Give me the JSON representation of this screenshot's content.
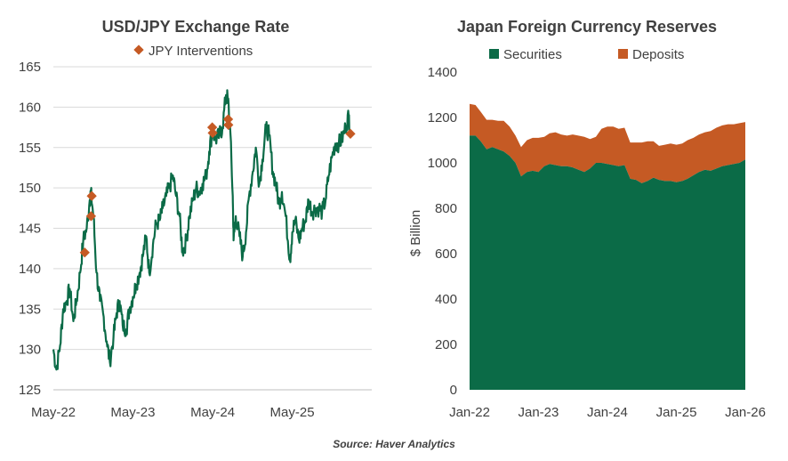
{
  "colors": {
    "fx_line": "#0b6b47",
    "intervention": "#c55a24",
    "securities": "#0b6b47",
    "deposits": "#c55a24"
  },
  "source": "Source: Haver Analytics",
  "chart_data": [
    {
      "type": "line",
      "title": "USD/JPY Exchange Rate",
      "legend": "JPY Interventions",
      "legend_position": "top",
      "ylim": [
        125,
        165
      ],
      "yticks": [
        125,
        130,
        135,
        140,
        145,
        150,
        155,
        160,
        165
      ],
      "xlim": [
        "2022-05-01",
        "2026-05-01"
      ],
      "xticks": [
        {
          "date": "2022-05-01",
          "label": "May-22"
        },
        {
          "date": "2023-05-01",
          "label": "May-23"
        },
        {
          "date": "2024-05-01",
          "label": "May-24"
        },
        {
          "date": "2025-05-01",
          "label": "May-25"
        }
      ],
      "grid": true,
      "series": [
        {
          "x": [
            "2022-05-01",
            "2022-05-15",
            "2022-06-01",
            "2022-06-15",
            "2022-07-01",
            "2022-07-15",
            "2022-08-01",
            "2022-08-15",
            "2022-09-01",
            "2022-09-15",
            "2022-10-01",
            "2022-10-15",
            "2022-10-20",
            "2022-11-01",
            "2022-11-15",
            "2022-12-01",
            "2022-12-15",
            "2023-01-01",
            "2023-01-15",
            "2023-02-01",
            "2023-02-15",
            "2023-03-01",
            "2023-03-15",
            "2023-04-01",
            "2023-04-15",
            "2023-05-01",
            "2023-05-15",
            "2023-06-01",
            "2023-06-15",
            "2023-07-01",
            "2023-07-15",
            "2023-08-01",
            "2023-08-15",
            "2023-09-01",
            "2023-09-15",
            "2023-10-01",
            "2023-10-15",
            "2023-11-01",
            "2023-11-15",
            "2023-12-01",
            "2023-12-15",
            "2024-01-01",
            "2024-01-15",
            "2024-02-01",
            "2024-02-15",
            "2024-03-01",
            "2024-03-15",
            "2024-04-01",
            "2024-04-15",
            "2024-04-29",
            "2024-05-15",
            "2024-06-01",
            "2024-06-15",
            "2024-07-01",
            "2024-07-10",
            "2024-07-20",
            "2024-08-01",
            "2024-08-05",
            "2024-08-15",
            "2024-09-01",
            "2024-09-16",
            "2024-10-01",
            "2024-10-15",
            "2024-11-01",
            "2024-11-15",
            "2024-12-01",
            "2024-12-15",
            "2025-01-01",
            "2025-01-15",
            "2025-02-01",
            "2025-02-15",
            "2025-03-01",
            "2025-03-15",
            "2025-04-01",
            "2025-04-21",
            "2025-05-01",
            "2025-05-15",
            "2025-06-01",
            "2025-06-15",
            "2025-07-01",
            "2025-07-15",
            "2025-08-01",
            "2025-08-15",
            "2025-09-01",
            "2025-09-15",
            "2025-10-01",
            "2025-10-15",
            "2025-11-01",
            "2025-11-15",
            "2025-12-01",
            "2025-12-15",
            "2026-01-01",
            "2026-01-15",
            "2026-01-23"
          ],
          "y": [
            130.0,
            127.5,
            130.5,
            135.0,
            136.0,
            137.5,
            133.5,
            136.0,
            139.5,
            143.5,
            145.0,
            148.5,
            149.5,
            146.5,
            139.5,
            136.0,
            134.5,
            131.0,
            128.5,
            131.5,
            134.5,
            136.0,
            133.0,
            132.5,
            135.0,
            136.5,
            138.0,
            139.5,
            141.5,
            144.0,
            139.5,
            143.0,
            145.5,
            146.0,
            147.5,
            149.0,
            150.0,
            151.5,
            149.0,
            146.5,
            142.0,
            143.5,
            146.5,
            148.5,
            150.0,
            149.5,
            150.5,
            151.5,
            154.5,
            157.0,
            156.0,
            156.5,
            157.5,
            161.5,
            161.0,
            157.5,
            149.0,
            143.5,
            146.5,
            144.0,
            141.5,
            144.5,
            149.0,
            152.0,
            155.0,
            150.5,
            153.5,
            157.5,
            156.5,
            152.0,
            150.5,
            148.0,
            149.5,
            146.5,
            141.0,
            144.5,
            146.0,
            143.5,
            145.0,
            146.0,
            148.5,
            147.0,
            147.5,
            147.5,
            147.0,
            148.5,
            151.5,
            154.0,
            155.5,
            155.5,
            156.0,
            157.5,
            159.0,
            157.0
          ]
        }
      ],
      "interventions": [
        {
          "x": "2022-09-22",
          "y": 142.0
        },
        {
          "x": "2022-10-21",
          "y": 146.5
        },
        {
          "x": "2022-10-24",
          "y": 149.0
        },
        {
          "x": "2024-04-29",
          "y": 157.5
        },
        {
          "x": "2024-05-01",
          "y": 156.8
        },
        {
          "x": "2024-07-11",
          "y": 158.5
        },
        {
          "x": "2024-07-12",
          "y": 157.8
        },
        {
          "x": "2026-01-23",
          "y": 156.7
        }
      ]
    },
    {
      "type": "area",
      "title": "Japan Foreign Currency Reserves",
      "ylabel": "$ Billion",
      "ylim": [
        0,
        1400
      ],
      "yticks": [
        0,
        200,
        400,
        600,
        800,
        1000,
        1200,
        1400
      ],
      "xlim": [
        "2022-01-01",
        "2026-01-01"
      ],
      "xticks": [
        {
          "date": "2022-01-01",
          "label": "Jan-22"
        },
        {
          "date": "2023-01-01",
          "label": "Jan-23"
        },
        {
          "date": "2024-01-01",
          "label": "Jan-24"
        },
        {
          "date": "2025-01-01",
          "label": "Jan-25"
        },
        {
          "date": "2026-01-01",
          "label": "Jan-26"
        }
      ],
      "legend_position": "top",
      "stacked": true,
      "x": [
        "2022-01-01",
        "2022-02-01",
        "2022-03-01",
        "2022-04-01",
        "2022-05-01",
        "2022-06-01",
        "2022-07-01",
        "2022-08-01",
        "2022-09-01",
        "2022-10-01",
        "2022-11-01",
        "2022-12-01",
        "2023-01-01",
        "2023-02-01",
        "2023-03-01",
        "2023-04-01",
        "2023-05-01",
        "2023-06-01",
        "2023-07-01",
        "2023-08-01",
        "2023-09-01",
        "2023-10-01",
        "2023-11-01",
        "2023-12-01",
        "2024-01-01",
        "2024-02-01",
        "2024-03-01",
        "2024-04-01",
        "2024-05-01",
        "2024-06-01",
        "2024-07-01",
        "2024-08-01",
        "2024-09-01",
        "2024-10-01",
        "2024-11-01",
        "2024-12-01",
        "2025-01-01",
        "2025-02-01",
        "2025-03-01",
        "2025-04-01",
        "2025-05-01",
        "2025-06-01",
        "2025-07-01",
        "2025-08-01",
        "2025-09-01",
        "2025-10-01",
        "2025-11-01",
        "2025-12-01",
        "2026-01-01"
      ],
      "series": [
        {
          "name": "Securities",
          "values": [
            1120,
            1120,
            1095,
            1060,
            1070,
            1060,
            1050,
            1030,
            1000,
            940,
            960,
            965,
            960,
            985,
            995,
            990,
            985,
            985,
            980,
            970,
            960,
            975,
            1000,
            1000,
            995,
            990,
            985,
            990,
            930,
            925,
            910,
            920,
            935,
            925,
            920,
            920,
            915,
            920,
            930,
            945,
            960,
            970,
            965,
            975,
            985,
            990,
            995,
            1000,
            1015
          ]
        },
        {
          "name": "Deposits",
          "values": [
            140,
            135,
            130,
            130,
            120,
            125,
            135,
            130,
            120,
            130,
            140,
            145,
            150,
            130,
            135,
            145,
            140,
            135,
            145,
            150,
            155,
            130,
            115,
            150,
            165,
            170,
            165,
            165,
            160,
            165,
            180,
            175,
            160,
            150,
            160,
            165,
            165,
            165,
            170,
            165,
            165,
            165,
            175,
            180,
            180,
            180,
            175,
            175,
            165
          ]
        }
      ]
    }
  ]
}
